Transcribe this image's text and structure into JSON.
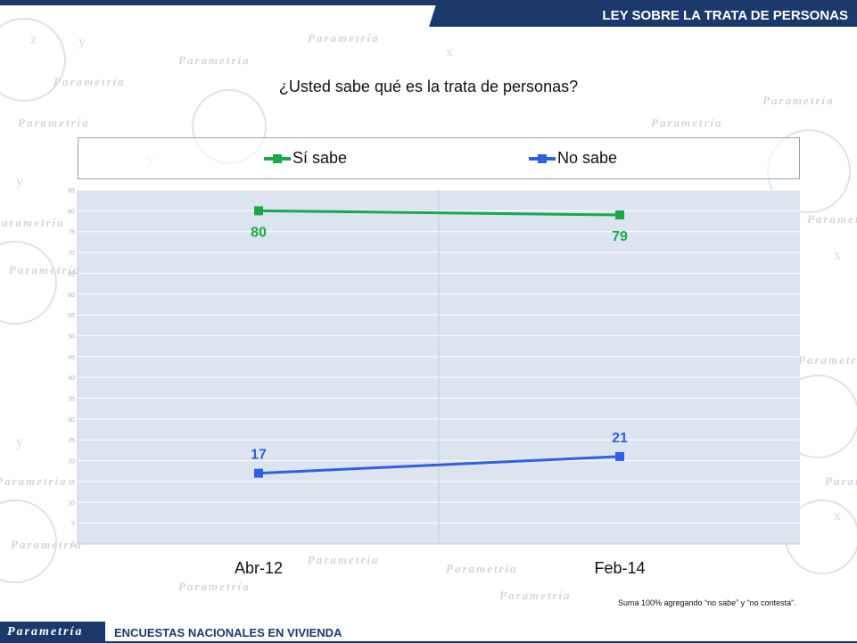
{
  "header": {
    "title": "LEY SOBRE LA TRATA DE PERSONAS"
  },
  "question": "¿Usted sabe qué es la trata de personas?",
  "watermark_text": "Parametría",
  "footnote": "Suma 100%  agregando “no sabe” y “no contesta”.",
  "footer": {
    "logo": "Parametría",
    "text": "ENCUESTAS NACIONALES EN VIVIENDA"
  },
  "colors": {
    "navy": "#1b3a6b",
    "si_sabe": "#1aa84a",
    "no_sabe": "#2f5fe6",
    "plot_bg": "#dce4f0"
  },
  "chart_data": {
    "type": "line",
    "title": "",
    "categories": [
      "Abr-12",
      "Feb-14"
    ],
    "series": [
      {
        "name": "Sí sabe",
        "values": [
          80,
          79
        ]
      },
      {
        "name": "No sabe",
        "values": [
          17,
          21
        ]
      }
    ],
    "ylim": [
      0,
      85
    ],
    "yticks": [
      0,
      5,
      10,
      15,
      20,
      25,
      30,
      35,
      40,
      45,
      50,
      55,
      60,
      65,
      70,
      75,
      80,
      85
    ],
    "grid": true,
    "legend": "top"
  }
}
